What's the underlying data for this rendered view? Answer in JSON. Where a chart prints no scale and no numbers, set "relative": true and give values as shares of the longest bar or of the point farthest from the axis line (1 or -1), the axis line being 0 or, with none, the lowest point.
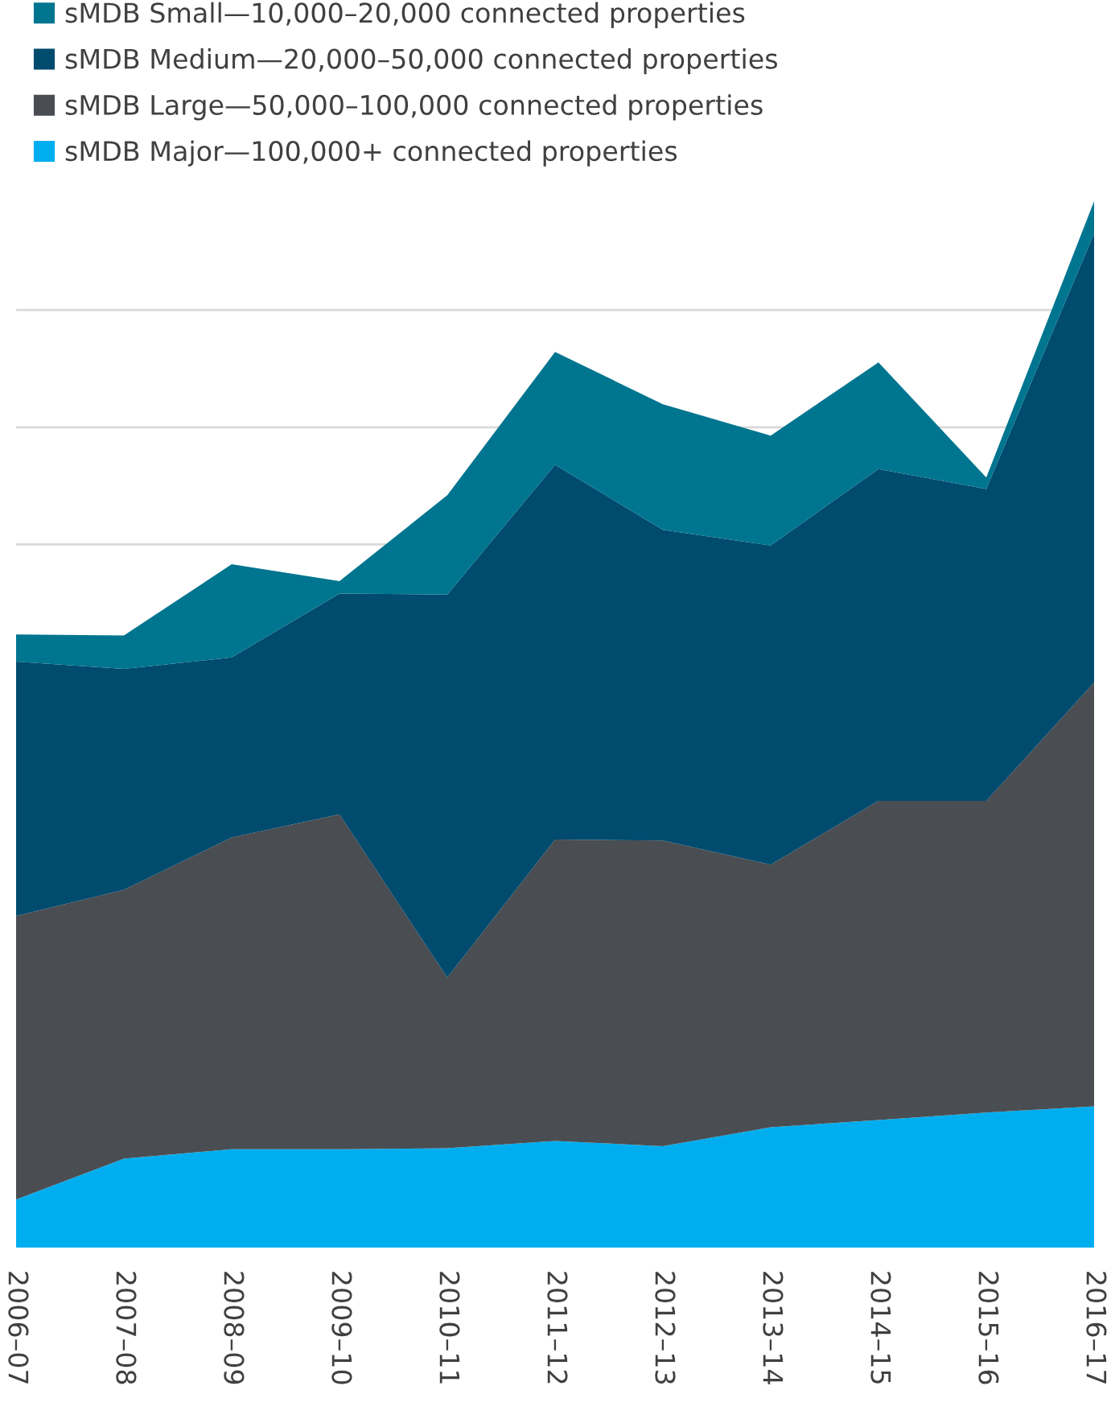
{
  "chart_data": {
    "type": "area",
    "stacked": true,
    "relative": true,
    "grid": "y",
    "legend": "top left",
    "categories": [
      "2006–07",
      "2007–08",
      "2008–09",
      "2009–10",
      "2010–11",
      "2011–12",
      "2012–13",
      "2013–14",
      "2014–15",
      "2015–16",
      "2016–17"
    ],
    "series": [
      {
        "name": "sMDB Major—100,000+ connected properties",
        "color": "#00aeef",
        "values": [
          0.046,
          0.085,
          0.094,
          0.094,
          0.095,
          0.102,
          0.097,
          0.115,
          0.122,
          0.129,
          0.135
        ]
      },
      {
        "name": "sMDB Large—50,000–100,000 connected properties",
        "color": "#4a4d52",
        "values": [
          0.271,
          0.257,
          0.298,
          0.32,
          0.163,
          0.288,
          0.292,
          0.251,
          0.305,
          0.298,
          0.405
        ]
      },
      {
        "name": "sMDB Medium—20,000–50,000 connected properties",
        "color": "#004b6e",
        "values": [
          0.243,
          0.211,
          0.172,
          0.211,
          0.366,
          0.358,
          0.297,
          0.305,
          0.317,
          0.298,
          0.429
        ]
      },
      {
        "name": "sMDB Small—10,000–20,000 connected properties",
        "color": "#00758f",
        "values": [
          0.026,
          0.032,
          0.089,
          0.012,
          0.095,
          0.108,
          0.12,
          0.105,
          0.102,
          0.011,
          0.031
        ]
      }
    ]
  }
}
